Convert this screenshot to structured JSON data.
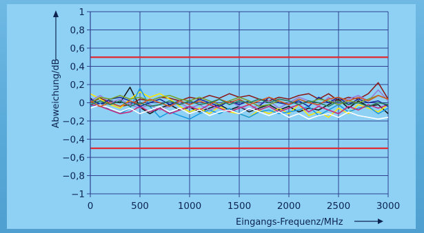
{
  "chart_data": {
    "type": "line",
    "title": "",
    "xlabel": "Eingangs-Frequenz/MHz",
    "ylabel": "Abweichung/dB",
    "xlim": [
      0,
      3000
    ],
    "ylim": [
      -1,
      1
    ],
    "x_ticks": [
      "0",
      "500",
      "1000",
      "1500",
      "2000",
      "2500",
      "3000"
    ],
    "y_ticks": [
      "1",
      "0,8",
      "0,6",
      "0,4",
      "0,2",
      "0",
      "−0,2",
      "−0,4",
      "−0,6",
      "−0,8",
      "−1"
    ],
    "grid": true,
    "x": [
      0,
      100,
      200,
      300,
      400,
      500,
      600,
      700,
      800,
      900,
      1000,
      1100,
      1200,
      1300,
      1400,
      1500,
      1600,
      1700,
      1800,
      1900,
      2000,
      2100,
      2200,
      2300,
      2400,
      2500,
      2600,
      2700,
      2800,
      2900,
      3000
    ],
    "limit_lines": [
      {
        "color": "#e0282e",
        "y": 0.5
      },
      {
        "color": "#e0282e",
        "y": -0.5
      }
    ],
    "series": [
      {
        "color": "#1a1a1a",
        "values": [
          0.05,
          -0.02,
          0.02,
          0.0,
          0.17,
          -0.05,
          -0.12,
          -0.06,
          -0.02,
          -0.08,
          -0.05,
          -0.1,
          -0.06,
          -0.02,
          -0.08,
          -0.04,
          -0.1,
          -0.06,
          -0.02,
          -0.08,
          -0.04,
          -0.1,
          -0.06,
          -0.08,
          -0.02,
          0.04,
          -0.06,
          0.02,
          -0.04,
          -0.02,
          -0.12
        ]
      },
      {
        "color": "#8b1a1a",
        "values": [
          0.0,
          0.05,
          0.0,
          -0.04,
          -0.02,
          0.04,
          0.02,
          0.06,
          0.05,
          0.02,
          0.06,
          0.04,
          0.08,
          0.05,
          0.1,
          0.06,
          0.08,
          0.04,
          0.02,
          0.06,
          0.04,
          0.08,
          0.1,
          0.04,
          0.1,
          0.02,
          0.06,
          0.04,
          0.1,
          0.22,
          0.04
        ]
      },
      {
        "color": "#ffe600",
        "values": [
          0.1,
          0.04,
          -0.02,
          -0.06,
          0.04,
          0.12,
          0.06,
          0.1,
          0.04,
          -0.04,
          -0.1,
          -0.06,
          -0.12,
          -0.04,
          -0.1,
          -0.12,
          -0.16,
          -0.08,
          -0.12,
          -0.06,
          -0.12,
          -0.02,
          -0.14,
          -0.1,
          -0.16,
          -0.06,
          -0.12,
          -0.02,
          -0.06,
          -0.1,
          -0.02
        ]
      },
      {
        "color": "#1c9ae0",
        "values": [
          -0.04,
          0.0,
          -0.08,
          -0.12,
          -0.06,
          0.16,
          -0.04,
          -0.16,
          -0.1,
          -0.14,
          -0.18,
          -0.12,
          -0.08,
          -0.12,
          -0.06,
          -0.12,
          -0.16,
          -0.1,
          -0.08,
          -0.12,
          -0.1,
          -0.08,
          -0.04,
          -0.14,
          -0.08,
          -0.02,
          -0.1,
          -0.06,
          -0.04,
          -0.12,
          -0.06
        ]
      },
      {
        "color": "#9a7ad8",
        "values": [
          0.02,
          0.08,
          0.0,
          0.04,
          -0.02,
          -0.06,
          -0.02,
          -0.08,
          -0.04,
          0.0,
          -0.06,
          -0.02,
          -0.08,
          -0.04,
          0.02,
          -0.04,
          -0.08,
          -0.02,
          0.02,
          -0.06,
          0.0,
          0.06,
          0.02,
          -0.04,
          0.06,
          -0.02,
          0.04,
          0.08,
          0.02,
          0.14,
          0.02
        ]
      },
      {
        "color": "#c8287a",
        "values": [
          -0.02,
          -0.04,
          -0.08,
          -0.12,
          -0.1,
          -0.04,
          -0.1,
          -0.06,
          -0.12,
          -0.08,
          -0.04,
          -0.08,
          -0.02,
          -0.06,
          -0.1,
          -0.06,
          -0.02,
          -0.08,
          -0.04,
          -0.1,
          -0.06,
          -0.02,
          -0.1,
          -0.04,
          -0.08,
          -0.12,
          -0.04,
          -0.08,
          -0.02,
          -0.06,
          -0.02
        ]
      },
      {
        "color": "#1a2a9a",
        "values": [
          0.04,
          -0.02,
          0.04,
          0.06,
          0.02,
          -0.04,
          0.0,
          0.04,
          -0.02,
          0.02,
          -0.02,
          0.04,
          0.0,
          -0.04,
          0.02,
          -0.02,
          0.02,
          -0.04,
          0.06,
          0.0,
          -0.02,
          0.02,
          -0.04,
          0.06,
          0.0,
          0.06,
          -0.02,
          0.04,
          0.0,
          0.02,
          -0.04
        ]
      },
      {
        "color": "#7aa02a",
        "values": [
          0.0,
          0.06,
          0.04,
          0.08,
          0.04,
          0.06,
          0.02,
          0.06,
          0.08,
          0.04,
          0.02,
          0.06,
          0.02,
          -0.02,
          0.02,
          0.06,
          0.02,
          -0.04,
          -0.02,
          0.02,
          -0.02,
          0.04,
          0.0,
          0.04,
          0.02,
          -0.02,
          0.02,
          0.0,
          0.04,
          0.08,
          0.04
        ]
      },
      {
        "color": "#ffffff",
        "values": [
          -0.06,
          -0.02,
          -0.06,
          -0.1,
          -0.06,
          -0.12,
          -0.08,
          -0.04,
          -0.1,
          -0.06,
          -0.12,
          -0.08,
          -0.14,
          -0.1,
          -0.08,
          -0.12,
          -0.06,
          -0.1,
          -0.14,
          -0.1,
          -0.16,
          -0.12,
          -0.18,
          -0.14,
          -0.12,
          -0.16,
          -0.1,
          -0.14,
          -0.16,
          -0.18,
          -0.16
        ]
      },
      {
        "color": "#d05a20",
        "values": [
          0.02,
          -0.04,
          0.0,
          -0.04,
          0.02,
          -0.02,
          0.04,
          0.0,
          -0.04,
          0.02,
          -0.02,
          0.02,
          -0.02,
          0.04,
          0.0,
          0.04,
          -0.02,
          0.02,
          0.06,
          0.02,
          -0.02,
          0.04,
          0.0,
          -0.02,
          0.04,
          0.06,
          0.02,
          0.06,
          0.02,
          0.08,
          0.04
        ]
      },
      {
        "color": "#2a7a5a",
        "values": [
          -0.02,
          0.02,
          -0.02,
          0.02,
          -0.04,
          0.0,
          -0.04,
          -0.02,
          0.02,
          -0.02,
          0.02,
          -0.02,
          0.0,
          0.04,
          -0.02,
          0.02,
          0.0,
          0.04,
          0.0,
          0.04,
          0.02,
          -0.02,
          0.02,
          0.0,
          -0.04,
          0.02,
          -0.02,
          0.0,
          -0.04,
          0.0,
          -0.02
        ]
      }
    ]
  }
}
